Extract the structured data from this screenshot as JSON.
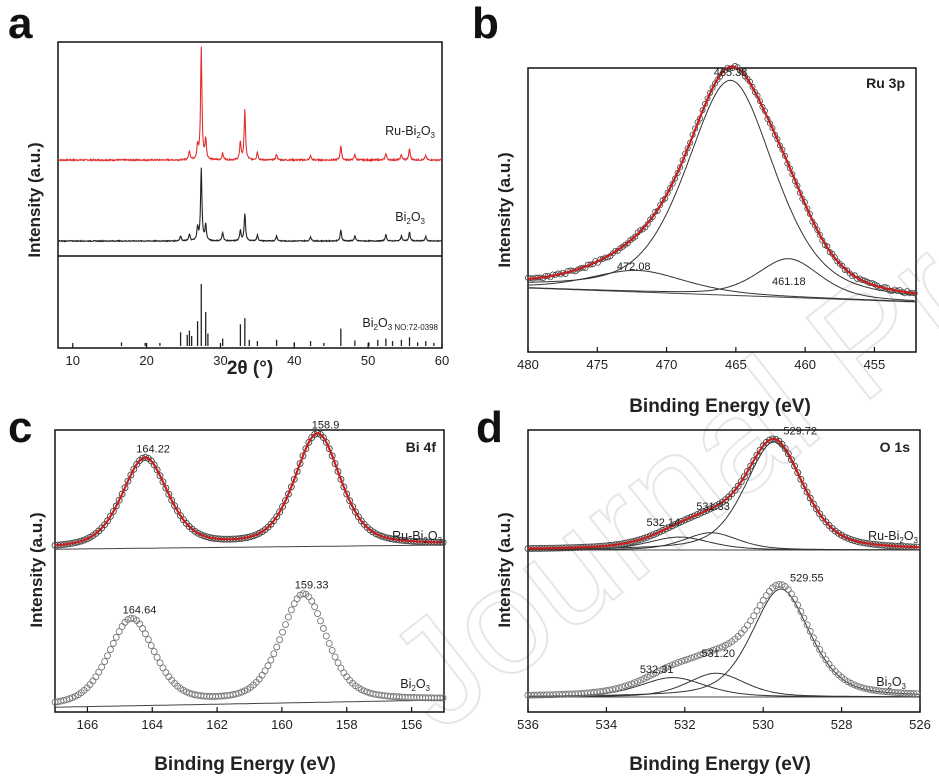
{
  "watermark": "Journal Pre-proof",
  "colors": {
    "red": "#e03030",
    "black": "#222222",
    "gray": "#666666",
    "fit": "#c42020"
  },
  "chart_data": [
    {
      "panel": "a",
      "type": "line",
      "title": "",
      "xlabel": "2θ (°)",
      "ylabel": "Intensity (a.u.)",
      "xlim": [
        8,
        60
      ],
      "xticks": [
        "10",
        "20",
        "30",
        "40",
        "50",
        "60"
      ],
      "series": [
        {
          "name": "Ru-Bi2O3",
          "label": [
            "Ru-Bi",
            "2",
            "O",
            "3"
          ],
          "color": "#e03030",
          "peaks": [
            [
              25.8,
              8
            ],
            [
              26.9,
              12
            ],
            [
              27.4,
              100
            ],
            [
              28.0,
              18
            ],
            [
              30.3,
              6
            ],
            [
              32.7,
              16
            ],
            [
              33.3,
              45
            ],
            [
              35.0,
              7
            ],
            [
              37.6,
              5
            ],
            [
              42.2,
              4
            ],
            [
              46.3,
              13
            ],
            [
              48.2,
              5
            ],
            [
              52.4,
              6
            ],
            [
              54.5,
              5
            ],
            [
              55.6,
              10
            ],
            [
              57.8,
              4
            ]
          ]
        },
        {
          "name": "Bi2O3",
          "label": [
            "Bi",
            "2",
            "O",
            "3"
          ],
          "color": "#222222",
          "peaks": [
            [
              24.6,
              7
            ],
            [
              25.8,
              9
            ],
            [
              26.9,
              18
            ],
            [
              27.4,
              100
            ],
            [
              28.0,
              22
            ],
            [
              30.3,
              12
            ],
            [
              32.7,
              15
            ],
            [
              33.3,
              38
            ],
            [
              35.0,
              8
            ],
            [
              37.6,
              7
            ],
            [
              42.2,
              6
            ],
            [
              46.3,
              15
            ],
            [
              48.2,
              7
            ],
            [
              52.4,
              9
            ],
            [
              54.5,
              7
            ],
            [
              55.6,
              12
            ],
            [
              57.8,
              6
            ]
          ]
        },
        {
          "name": "Bi2O3 NO:72-0398",
          "label": [
            "Bi",
            "2",
            "O",
            "3 NO:72-0398"
          ],
          "color": "#222222",
          "style": "sticks",
          "sticks": [
            [
              16.6,
              6
            ],
            [
              19.8,
              5
            ],
            [
              21.8,
              5
            ],
            [
              24.6,
              22
            ],
            [
              25.5,
              18
            ],
            [
              25.8,
              25
            ],
            [
              26.1,
              16
            ],
            [
              26.9,
              40
            ],
            [
              27.4,
              100
            ],
            [
              28.0,
              55
            ],
            [
              28.3,
              20
            ],
            [
              30.3,
              12
            ],
            [
              32.7,
              35
            ],
            [
              33.3,
              45
            ],
            [
              33.9,
              10
            ],
            [
              35.0,
              8
            ],
            [
              37.6,
              10
            ],
            [
              40.0,
              6
            ],
            [
              42.2,
              8
            ],
            [
              44.0,
              5
            ],
            [
              46.3,
              28
            ],
            [
              48.2,
              9
            ],
            [
              50.1,
              6
            ],
            [
              51.3,
              10
            ],
            [
              52.4,
              12
            ],
            [
              53.3,
              8
            ],
            [
              54.5,
              10
            ],
            [
              55.6,
              14
            ],
            [
              56.7,
              6
            ],
            [
              57.8,
              8
            ],
            [
              58.9,
              5
            ]
          ]
        }
      ]
    },
    {
      "panel": "b",
      "type": "line",
      "title": "Ru 3p",
      "xlabel": "Binding Energy (eV)",
      "ylabel": "Intensity (a.u.)",
      "xlim": [
        480,
        452
      ],
      "xticks": [
        "480",
        "475",
        "470",
        "465",
        "460",
        "455"
      ],
      "series": [
        {
          "name": "Ru-Bi2O3",
          "label": [],
          "color": "#e03030"
        }
      ],
      "peaks": [
        {
          "center": 465.38,
          "height": 1.0,
          "width": 3.2,
          "label": "465.38"
        },
        {
          "center": 472.08,
          "height": 0.1,
          "width": 3.5,
          "label": "472.08"
        },
        {
          "center": 461.18,
          "height": 0.18,
          "width": 2.3,
          "label": "461.18"
        }
      ]
    },
    {
      "panel": "c",
      "type": "line",
      "title": "Bi 4f",
      "xlabel": "Binding Energy (eV)",
      "ylabel": "Intensity (a.u.)",
      "xlim": [
        167,
        155
      ],
      "xticks": [
        "166",
        "164",
        "162",
        "160",
        "158",
        "156"
      ],
      "series": [
        {
          "name": "Ru-Bi2O3",
          "label": [
            "Ru-Bi",
            "2",
            "O",
            "3"
          ],
          "color": "#e03030",
          "peaks": [
            {
              "center": 164.22,
              "height": 0.8,
              "width": 0.72,
              "label": "164.22"
            },
            {
              "center": 158.9,
              "height": 1.0,
              "width": 0.72,
              "label": "158.9"
            }
          ]
        },
        {
          "name": "Bi2O3",
          "label": [
            "Bi",
            "2",
            "O",
            "3"
          ],
          "color": "#999999",
          "peaks": [
            {
              "center": 164.64,
              "height": 0.8,
              "width": 0.72,
              "label": "164.64"
            },
            {
              "center": 159.33,
              "height": 1.0,
              "width": 0.72,
              "label": "159.33"
            }
          ]
        }
      ]
    },
    {
      "panel": "d",
      "type": "line",
      "title": "O 1s",
      "xlabel": "Binding Energy (eV)",
      "ylabel": "Intensity (a.u.)",
      "xlim": [
        536,
        526
      ],
      "xticks": [
        "536",
        "534",
        "532",
        "530",
        "528",
        "526"
      ],
      "series": [
        {
          "name": "Ru-Bi2O3",
          "label": [
            "Ru-Bi",
            "2",
            "O",
            "3"
          ],
          "color": "#e03030",
          "peaks": [
            {
              "center": 529.72,
              "height": 1.0,
              "width": 0.75,
              "label": "529.72"
            },
            {
              "center": 531.33,
              "height": 0.16,
              "width": 0.7,
              "label": "531.33"
            },
            {
              "center": 532.14,
              "height": 0.12,
              "width": 0.8,
              "label": "532.14"
            }
          ]
        },
        {
          "name": "Bi2O3",
          "label": [
            "Bi",
            "2",
            "O",
            "3"
          ],
          "color": "#999999",
          "peaks": [
            {
              "center": 529.55,
              "height": 1.0,
              "width": 0.75,
              "label": "529.55"
            },
            {
              "center": 531.2,
              "height": 0.22,
              "width": 0.75,
              "label": "531.20"
            },
            {
              "center": 532.31,
              "height": 0.18,
              "width": 0.85,
              "label": "532.31"
            }
          ]
        }
      ]
    }
  ]
}
